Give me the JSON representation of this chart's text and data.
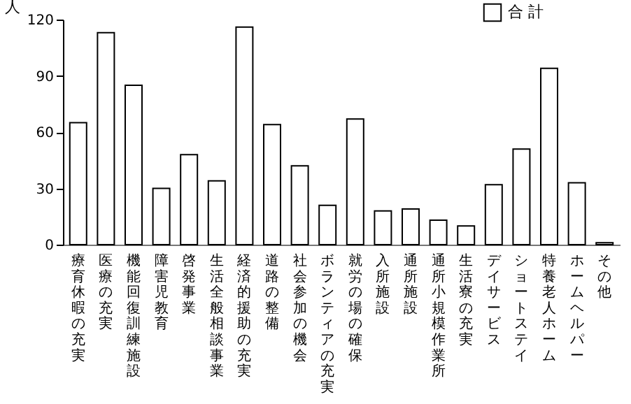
{
  "chart_data": {
    "type": "bar",
    "ylabel": "人",
    "categories": [
      "療育休暇の充実",
      "医療の充実",
      "機能回復訓練施設",
      "障害児教育",
      "啓発事業",
      "生活全般相談事業",
      "経済的援助の充実",
      "道路の整備",
      "社会参加の機会",
      "ボランティアの充実",
      "就労の場の確保",
      "入所施設",
      "通所施設",
      "通所小規模作業所",
      "生活寮の充実",
      "デイサービス",
      "ショートステイ",
      "特養老人ホーム",
      "ホームヘルパー",
      "その他"
    ],
    "series": [
      {
        "name": "合 計",
        "color": "#ffffff",
        "values": [
          65,
          113,
          85,
          30,
          48,
          34,
          116,
          64,
          42,
          21,
          67,
          18,
          19,
          13,
          10,
          32,
          51,
          94,
          33,
          1
        ]
      }
    ],
    "ylim": [
      0,
      120
    ],
    "yticks": [
      0,
      30,
      60,
      90,
      120
    ],
    "grid": false,
    "legend": "top right"
  }
}
